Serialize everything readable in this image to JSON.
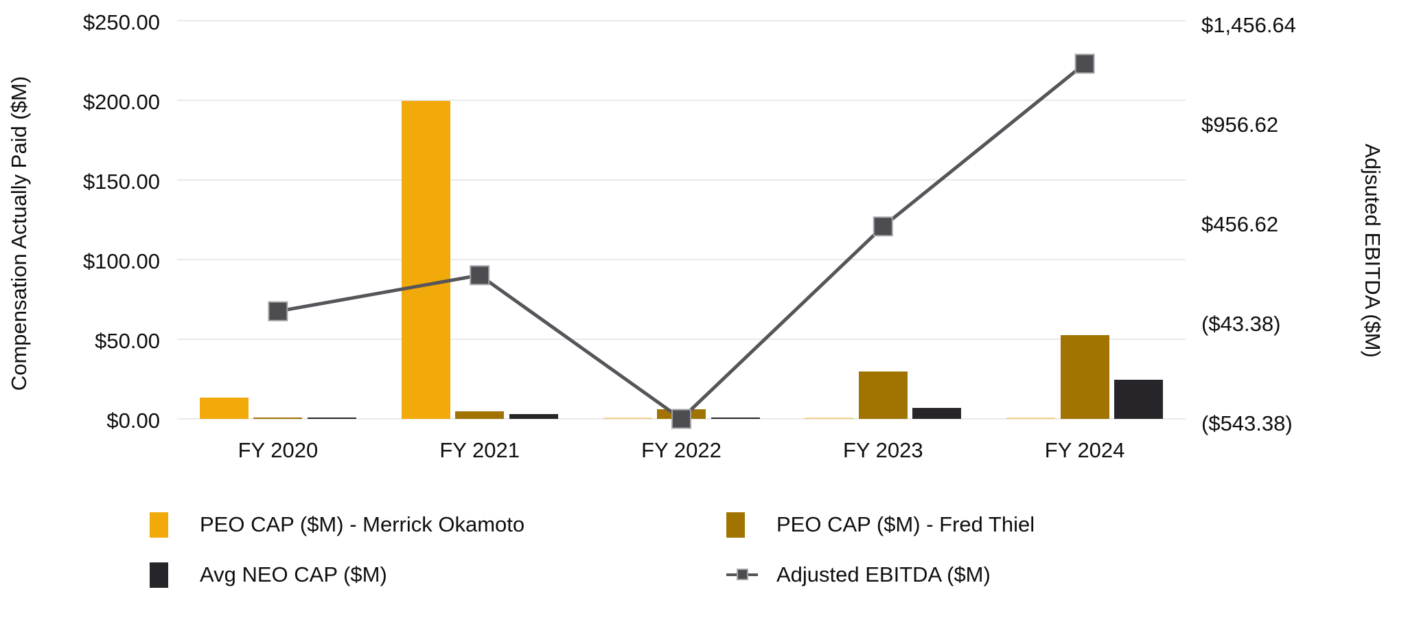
{
  "chart_data": {
    "type": "combo-bar-line",
    "categories": [
      "FY 2020",
      "FY 2021",
      "FY 2022",
      "FY 2023",
      "FY 2024"
    ],
    "series": [
      {
        "name": "PEO CAP ($M) - Merrick Okamoto",
        "type": "bar",
        "axis": "left",
        "color": "#F2A90A",
        "values": [
          13.4,
          199.7,
          0,
          0,
          0
        ]
      },
      {
        "name": "PEO CAP ($M) - Fred Thiel",
        "type": "bar",
        "axis": "left",
        "color": "#A17300",
        "values": [
          0.3,
          4.7,
          6.0,
          29.7,
          52.6
        ]
      },
      {
        "name": "Avg NEO CAP ($M)",
        "type": "bar",
        "axis": "left",
        "color": "#272529",
        "values": [
          1.0,
          3.0,
          0.3,
          6.9,
          24.6
        ]
      },
      {
        "name": "Adjusted EBITDA ($M)",
        "type": "line",
        "axis": "right",
        "color": "#55555A",
        "marker": "square",
        "marker_fill": "#4C4C51",
        "marker_border": "#A6A6AA",
        "values": [
          -3,
          178,
          -543.38,
          423,
          1240
        ]
      }
    ],
    "left_axis": {
      "title": "Compensation Actually Paid ($M)",
      "min": 0,
      "max": 250,
      "ticks": [
        "$250.00",
        "$200.00",
        "$150.00",
        "$100.00",
        "$50.00",
        "$0.00"
      ],
      "tick_values": [
        250,
        200,
        150,
        100,
        50,
        0
      ]
    },
    "right_axis": {
      "title": "Adjsuted EBITDA ($M)",
      "min": -543.38,
      "max": 1456.64,
      "ticks": [
        "$1,456.64",
        "$956.62",
        "$456.62",
        "($43.38)",
        "($543.38)"
      ],
      "tick_values": [
        1456.64,
        956.62,
        456.62,
        -43.38,
        -543.38
      ]
    },
    "grid": true,
    "gridline_color": "#E9E9E9",
    "background": "#FFFFFF",
    "legend_position": "bottom",
    "legend": [
      {
        "label": "PEO CAP ($M) - Merrick Okamoto",
        "swatch": "square",
        "color": "#F2A90A"
      },
      {
        "label": "PEO CAP ($M) - Fred Thiel",
        "swatch": "square",
        "color": "#A17300"
      },
      {
        "label": "Avg NEO CAP ($M)",
        "swatch": "square",
        "color": "#272529"
      },
      {
        "label": "Adjusted EBITDA ($M)",
        "swatch": "line-marker",
        "color": "#55555A"
      }
    ]
  }
}
